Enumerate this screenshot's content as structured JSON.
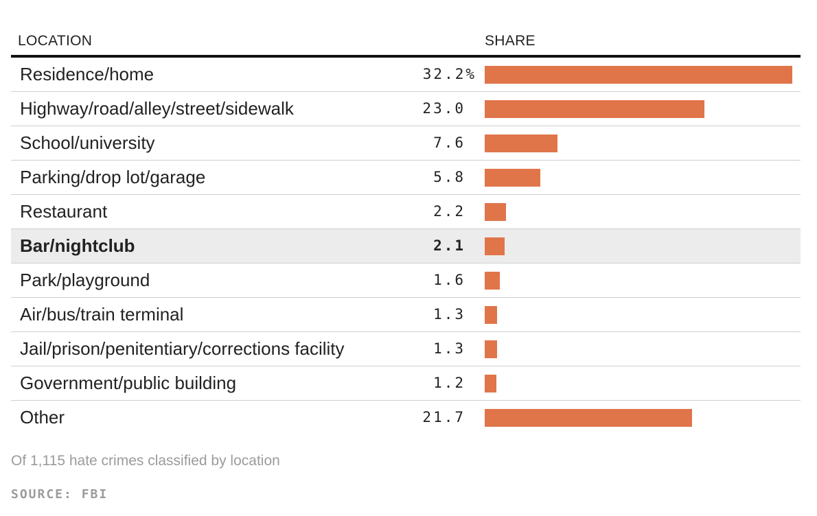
{
  "header": {
    "location_label": "LOCATION",
    "share_label": "SHARE"
  },
  "colors": {
    "bar": "#e0754a",
    "highlight_row": "#ececec"
  },
  "chart_data": {
    "type": "bar",
    "orientation": "horizontal",
    "highlighted_category": "Bar/nightclub",
    "categories": [
      "Residence/home",
      "Highway/road/alley/street/sidewalk",
      "School/university",
      "Parking/drop lot/garage",
      "Restaurant",
      "Bar/nightclub",
      "Park/playground",
      "Air/bus/train terminal",
      "Jail/prison/penitentiary/corrections facility",
      "Government/public building",
      "Other"
    ],
    "values": [
      32.2,
      23.0,
      7.6,
      5.8,
      2.2,
      2.1,
      1.6,
      1.3,
      1.3,
      1.2,
      21.7
    ],
    "value_labels": [
      "32.2%",
      "23.0",
      "7.6",
      "5.8",
      "2.2",
      "2.1",
      "1.6",
      "1.3",
      "1.3",
      "1.2",
      "21.7"
    ],
    "xlim": [
      0,
      32.2
    ],
    "grid": false
  },
  "footer": {
    "note": "Of 1,115 hate crimes classified by location",
    "source": "SOURCE: FBI"
  }
}
